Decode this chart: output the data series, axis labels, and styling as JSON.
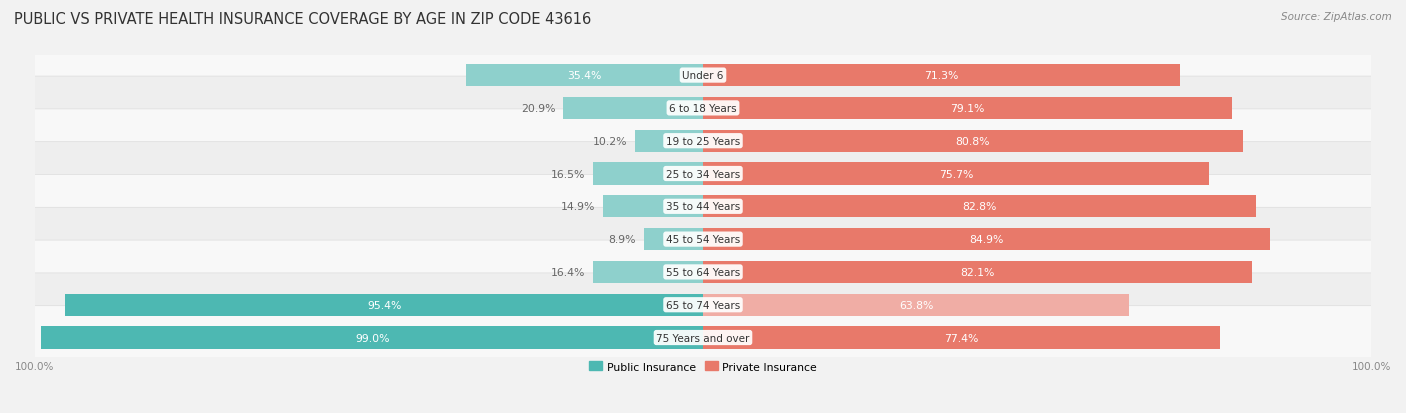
{
  "title": "PUBLIC VS PRIVATE HEALTH INSURANCE COVERAGE BY AGE IN ZIP CODE 43616",
  "source": "Source: ZipAtlas.com",
  "categories": [
    "Under 6",
    "6 to 18 Years",
    "19 to 25 Years",
    "25 to 34 Years",
    "35 to 44 Years",
    "45 to 54 Years",
    "55 to 64 Years",
    "65 to 74 Years",
    "75 Years and over"
  ],
  "public_values": [
    35.4,
    20.9,
    10.2,
    16.5,
    14.9,
    8.9,
    16.4,
    95.4,
    99.0
  ],
  "private_values": [
    71.3,
    79.1,
    80.8,
    75.7,
    82.8,
    84.9,
    82.1,
    63.8,
    77.4
  ],
  "public_color": "#4db8b2",
  "private_color": "#e8796a",
  "public_color_light": "#8ed0cc",
  "private_color_light": "#f0ada5",
  "background_color": "#f2f2f2",
  "row_bg_odd": "#f8f8f8",
  "row_bg_even": "#eeeeee",
  "label_color_white": "#ffffff",
  "label_color_dark": "#666666",
  "max_value": 100.0,
  "legend_public": "Public Insurance",
  "legend_private": "Private Insurance",
  "title_fontsize": 10.5,
  "label_fontsize": 7.8,
  "category_fontsize": 7.5,
  "axis_fontsize": 7.5,
  "source_fontsize": 7.5,
  "public_label_inside_threshold": 25,
  "private_label_always_inside": true
}
